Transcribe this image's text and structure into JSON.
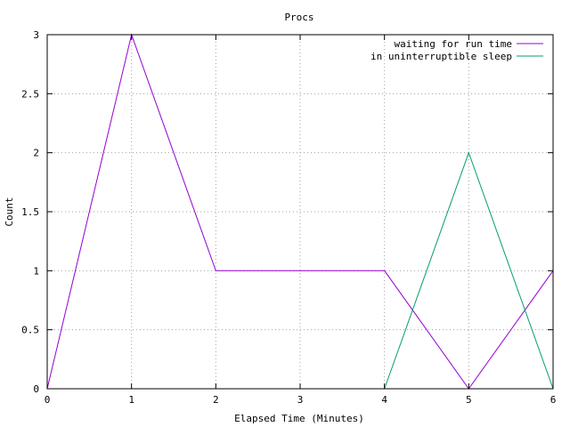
{
  "chart_data": {
    "type": "line",
    "title": "Procs",
    "xlabel": "Elapsed Time (Minutes)",
    "ylabel": "Count",
    "xlim": [
      0,
      6
    ],
    "ylim": [
      0,
      3
    ],
    "xticks": [
      0,
      1,
      2,
      3,
      4,
      5,
      6
    ],
    "yticks": [
      0,
      0.5,
      1,
      1.5,
      2,
      2.5,
      3
    ],
    "xtick_labels": [
      "0",
      "1",
      "2",
      "3",
      "4",
      "5",
      "6"
    ],
    "ytick_labels": [
      "0",
      "0.5",
      "1",
      "1.5",
      "2",
      "2.5",
      "3"
    ],
    "grid": true,
    "legend_position": "top-right",
    "series": [
      {
        "name": "waiting for run time",
        "color": "#9400d3",
        "x": [
          0,
          1,
          2,
          3,
          4,
          5,
          6
        ],
        "y": [
          0,
          3,
          1,
          1,
          1,
          0,
          1
        ]
      },
      {
        "name": "in uninterruptible sleep",
        "color": "#009e73",
        "x": [
          4,
          5,
          6
        ],
        "y": [
          0,
          2,
          0
        ]
      }
    ]
  }
}
